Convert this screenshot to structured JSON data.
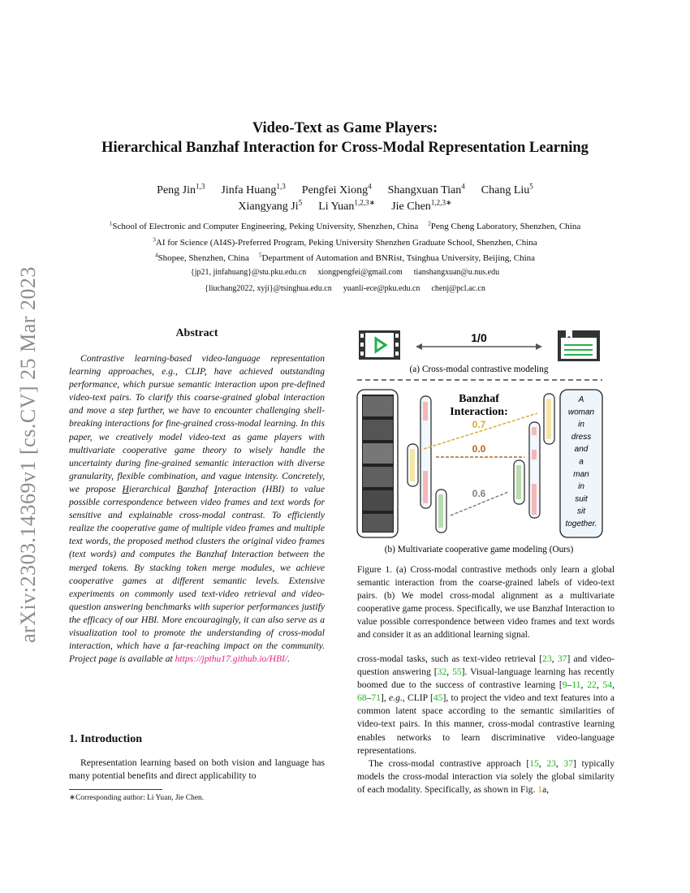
{
  "watermark": "arXiv:2303.14369v1  [cs.CV]  25 Mar 2023",
  "title": {
    "line1": "Video-Text as Game Players:",
    "line2": "Hierarchical Banzhaf Interaction for Cross-Modal Representation Learning"
  },
  "authors": {
    "row1": [
      {
        "name": "Peng Jin",
        "sup": "1,3"
      },
      {
        "name": "Jinfa Huang",
        "sup": "1,3"
      },
      {
        "name": "Pengfei Xiong",
        "sup": "4"
      },
      {
        "name": "Shangxuan Tian",
        "sup": "4"
      },
      {
        "name": "Chang Liu",
        "sup": "5"
      }
    ],
    "row2": [
      {
        "name": "Xiangyang Ji",
        "sup": "5"
      },
      {
        "name": "Li Yuan",
        "sup": "1,2,3∗"
      },
      {
        "name": "Jie Chen",
        "sup": "1,2,3∗"
      }
    ]
  },
  "affiliations": [
    [
      {
        "sup": "1",
        "text": "School of Electronic and Computer Engineering, Peking University, Shenzhen, China"
      },
      {
        "sup": "2",
        "text": "Peng Cheng Laboratory, Shenzhen, China"
      }
    ],
    [
      {
        "sup": "3",
        "text": "AI for Science (AI4S)-Preferred Program, Peking University Shenzhen Graduate School, Shenzhen, China"
      }
    ],
    [
      {
        "sup": "4",
        "text": "Shopee, Shenzhen, China"
      },
      {
        "sup": "5",
        "text": "Department of Automation and BNRist, Tsinghua University, Beijing, China"
      }
    ]
  ],
  "emails": [
    [
      "{jp21, jinfahuang}@stu.pku.edu.cn",
      "xiongpengfei@gmail.com",
      "tianshangxuan@u.nus.edu"
    ],
    [
      "{liuchang2022, xyji}@tsinghua.edu.cn",
      "yuanli-ece@pku.edu.cn",
      "chenj@pcl.ac.cn"
    ]
  ],
  "abstract": {
    "heading": "Abstract",
    "text_a": "Contrastive learning-based video-language representation learning approaches, e.g., CLIP, have achieved outstanding performance, which pursue semantic interaction upon pre-defined video-text pairs. To clarify this coarse-grained global interaction and move a step further, we have to encounter challenging shell-breaking interactions for fine-grained cross-modal learning. In this paper, we creatively model video-text as game players with multivariate cooperative game theory to wisely handle the uncertainty during fine-grained semantic interaction with diverse granularity, flexible combination, and vague intensity. Concretely, we propose ",
    "h": "H",
    "ierarchical": "ierarchical ",
    "b": "B",
    "anzhaf": "anzhaf ",
    "i": "I",
    "nteraction": "nteraction",
    "text_b": " (HBI) to value possible correspondence between video frames and text words for sensitive and explainable cross-modal contrast. To efficiently realize the cooperative game of multiple video frames and multiple text words, the proposed method clusters the original video frames (text words) and computes the Banzhaf Interaction between the merged tokens. By stacking token merge modules, we achieve cooperative games at different semantic levels. Extensive experiments on commonly used text-video retrieval and video-question answering benchmarks with superior performances justify the efficacy of our HBI. More encouragingly, it can also serve as a visualization tool to promote the understanding of cross-modal interaction, which have a far-reaching impact on the community. Project page is available at ",
    "link": "https://jpthu17.github.io/HBI/",
    "end": "."
  },
  "intro": {
    "heading": "1. Introduction",
    "text": "Representation learning based on both vision and language has many potential benefits and direct applicability to"
  },
  "footnote": "∗Corresponding author: Li Yuan, Jie Chen.",
  "figure": {
    "label_10": "1/0",
    "caption_a": "(a) Cross-modal contrastive modeling",
    "banzhaf_line1": "Banzhaf",
    "banzhaf_line2": "Interaction:",
    "values": [
      "0.7",
      "0.0",
      "0.6"
    ],
    "colors": {
      "v07": "#e0a82e",
      "v00": "#b5651d",
      "v06": "#808080",
      "green": "#22b14c",
      "pink": "#f5b8b8",
      "lightgreen": "#b9dcae"
    },
    "sentence_words": [
      "A",
      "woman",
      "in",
      "dress",
      "and",
      "a",
      "man",
      "in",
      "suit",
      "sit",
      "together."
    ],
    "caption_b": "(b) Multivariate cooperative game modeling (Ours)",
    "caption": "Figure 1. (a) Cross-modal contrastive methods only learn a global semantic interaction from the coarse-grained labels of video-text pairs. (b) We model cross-modal alignment as a multivariate cooperative game process. Specifically, we use Banzhaf Interaction to value possible correspondence between video frames and text words and consider it as an additional learning signal."
  },
  "right_col": [
    [
      {
        "t": "cross-modal tasks, such as text-video retrieval ["
      },
      {
        "c": "23"
      },
      {
        "t": ", "
      },
      {
        "c": "37"
      },
      {
        "t": "] and video-question answering ["
      },
      {
        "c": "32"
      },
      {
        "t": ", "
      },
      {
        "c": "55"
      },
      {
        "t": "]. Visual-language learning has recently boomed due to the success of contrastive learning ["
      },
      {
        "c": "9"
      },
      {
        "t": "–"
      },
      {
        "c": "11"
      },
      {
        "t": ", "
      },
      {
        "c": "22"
      },
      {
        "t": ", "
      },
      {
        "c": "54"
      },
      {
        "t": ", "
      },
      {
        "c": "68"
      },
      {
        "t": "–"
      },
      {
        "c": "71"
      },
      {
        "t": "], "
      },
      {
        "i": "e.g."
      },
      {
        "t": ", CLIP ["
      },
      {
        "c": "45"
      },
      {
        "t": "], to project the video and text features into a common latent space according to the semantic similarities of video-text pairs. In this manner, cross-modal contrastive learning enables networks to learn discriminative video-language representations."
      }
    ],
    [
      {
        "t": "The cross-modal contrastive approach ["
      },
      {
        "c": "15"
      },
      {
        "t": ", "
      },
      {
        "c": "23"
      },
      {
        "t": ", "
      },
      {
        "c": "37"
      },
      {
        "t": "] typically models the cross-modal interaction via solely the global similarity of each modality. Specifically, as shown in Fig. "
      },
      {
        "r": "1"
      },
      {
        "t": "a,"
      }
    ]
  ]
}
